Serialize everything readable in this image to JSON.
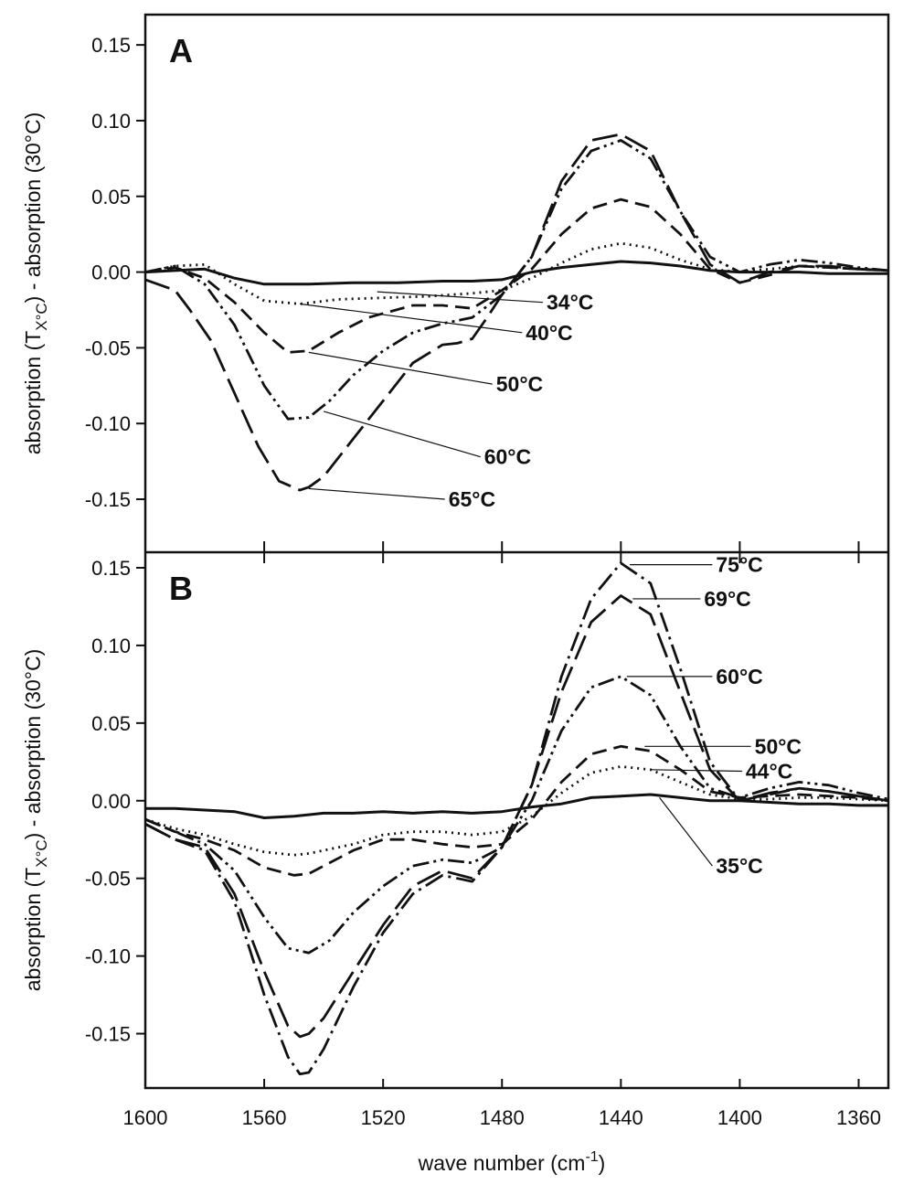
{
  "chart_data": [
    {
      "type": "line",
      "panel": "A",
      "xlabel_main": "wave number (cm",
      "xlabel_sup": "-1",
      "xlabel_end": ")",
      "ylabel_pre": "absorption (T",
      "ylabel_sub": "X°C",
      "ylabel_post": ") - absorption (30°C)",
      "xlim": [
        1600,
        1350
      ],
      "ylim": [
        -0.185,
        0.17
      ],
      "grid": false,
      "yticks": [
        "-0.15",
        "-0.10",
        "-0.05",
        "0.00",
        "0.05",
        "0.10",
        "0.15"
      ],
      "ytick_values": [
        -0.15,
        -0.1,
        -0.05,
        0.0,
        0.05,
        0.1,
        0.15
      ],
      "series": [
        {
          "name": "34°C",
          "dash": "solid",
          "label_at": [
            1522,
            -0.013
          ],
          "x": [
            1600,
            1590,
            1580,
            1570,
            1560,
            1545,
            1530,
            1515,
            1500,
            1490,
            1480,
            1470,
            1460,
            1450,
            1440,
            1430,
            1420,
            1410,
            1400,
            1390,
            1380,
            1370,
            1360,
            1350
          ],
          "y": [
            0.0,
            0.001,
            0.002,
            -0.004,
            -0.008,
            -0.008,
            -0.007,
            -0.007,
            -0.006,
            -0.006,
            -0.005,
            0.0,
            0.003,
            0.005,
            0.007,
            0.006,
            0.004,
            0.001,
            0.0,
            0.0,
            0.0,
            -0.001,
            -0.001,
            -0.001
          ]
        },
        {
          "name": "40°C",
          "dash": "dotted",
          "label_at": [
            1548,
            -0.021
          ],
          "x": [
            1600,
            1590,
            1580,
            1570,
            1560,
            1548,
            1535,
            1520,
            1505,
            1490,
            1480,
            1470,
            1460,
            1450,
            1440,
            1430,
            1420,
            1410,
            1400,
            1390,
            1380,
            1370,
            1360,
            1350
          ],
          "y": [
            0.0,
            0.004,
            0.005,
            -0.008,
            -0.019,
            -0.021,
            -0.018,
            -0.017,
            -0.016,
            -0.014,
            -0.012,
            -0.004,
            0.006,
            0.015,
            0.019,
            0.016,
            0.008,
            0.002,
            0.0,
            0.002,
            0.004,
            0.003,
            0.002,
            0.001
          ]
        },
        {
          "name": "50°C",
          "dash": "dashed",
          "label_at": [
            1545,
            -0.053
          ],
          "x": [
            1600,
            1590,
            1580,
            1570,
            1560,
            1552,
            1545,
            1535,
            1525,
            1510,
            1500,
            1490,
            1480,
            1470,
            1460,
            1450,
            1440,
            1430,
            1420,
            1410,
            1400,
            1390,
            1380,
            1370,
            1360,
            1350
          ],
          "y": [
            0.0,
            0.003,
            -0.004,
            -0.02,
            -0.04,
            -0.053,
            -0.052,
            -0.04,
            -0.03,
            -0.022,
            -0.022,
            -0.024,
            -0.012,
            0.002,
            0.025,
            0.042,
            0.048,
            0.043,
            0.025,
            0.002,
            -0.007,
            -0.002,
            0.004,
            0.003,
            0.002,
            0.001
          ]
        },
        {
          "name": "60°C",
          "dash": "dash-dot-dot",
          "label_at": [
            1540,
            -0.092
          ],
          "x": [
            1600,
            1590,
            1580,
            1570,
            1560,
            1552,
            1545,
            1538,
            1530,
            1520,
            1510,
            1500,
            1490,
            1480,
            1470,
            1460,
            1450,
            1440,
            1430,
            1420,
            1410,
            1400,
            1390,
            1380,
            1370,
            1360,
            1350
          ],
          "y": [
            0.0,
            0.004,
            -0.008,
            -0.035,
            -0.075,
            -0.097,
            -0.096,
            -0.085,
            -0.068,
            -0.052,
            -0.04,
            -0.034,
            -0.03,
            -0.015,
            0.01,
            0.055,
            0.08,
            0.087,
            0.075,
            0.04,
            0.01,
            0.0,
            0.005,
            0.008,
            0.006,
            0.003,
            0.001
          ]
        },
        {
          "name": "65°C",
          "dash": "long-dash",
          "label_at": [
            1545,
            -0.143
          ],
          "x": [
            1600,
            1590,
            1585,
            1578,
            1570,
            1562,
            1555,
            1548,
            1545,
            1540,
            1530,
            1520,
            1510,
            1500,
            1495,
            1490,
            1485,
            1480,
            1470,
            1460,
            1450,
            1440,
            1430,
            1420,
            1410,
            1400,
            1390,
            1380,
            1370,
            1360,
            1350
          ],
          "y": [
            -0.005,
            -0.012,
            -0.025,
            -0.045,
            -0.08,
            -0.115,
            -0.138,
            -0.144,
            -0.142,
            -0.135,
            -0.11,
            -0.085,
            -0.06,
            -0.048,
            -0.047,
            -0.044,
            -0.03,
            -0.015,
            0.01,
            0.06,
            0.087,
            0.091,
            0.08,
            0.04,
            0.005,
            -0.007,
            0.0,
            0.004,
            0.004,
            0.002,
            0.001
          ]
        }
      ],
      "labels": [
        {
          "text": "34°C",
          "to": [
            1522,
            -0.013
          ],
          "at": [
            1465,
            -0.02
          ]
        },
        {
          "text": "40°C",
          "to": [
            1548,
            -0.021
          ],
          "at": [
            1472,
            -0.04
          ]
        },
        {
          "text": "50°C",
          "to": [
            1545,
            -0.053
          ],
          "at": [
            1482,
            -0.074
          ]
        },
        {
          "text": "60°C",
          "to": [
            1540,
            -0.092
          ],
          "at": [
            1486,
            -0.122
          ]
        },
        {
          "text": "65°C",
          "to": [
            1545,
            -0.143
          ],
          "at": [
            1498,
            -0.15
          ]
        }
      ]
    },
    {
      "type": "line",
      "panel": "B",
      "xlim": [
        1600,
        1350
      ],
      "ylim": [
        -0.185,
        0.16
      ],
      "grid": false,
      "yticks": [
        "-0.15",
        "-0.10",
        "-0.05",
        "0.00",
        "0.05",
        "0.10",
        "0.15"
      ],
      "ytick_values": [
        -0.15,
        -0.1,
        -0.05,
        0.0,
        0.05,
        0.1,
        0.15
      ],
      "xticks": [
        "1600",
        "1560",
        "1520",
        "1480",
        "1440",
        "1400",
        "1360"
      ],
      "xtick_values": [
        1600,
        1560,
        1520,
        1480,
        1440,
        1400,
        1360
      ],
      "series": [
        {
          "name": "35°C",
          "dash": "solid",
          "label_at": [
            1427,
            0.002
          ],
          "x": [
            1600,
            1590,
            1580,
            1570,
            1560,
            1550,
            1540,
            1530,
            1520,
            1510,
            1500,
            1490,
            1480,
            1470,
            1460,
            1450,
            1440,
            1430,
            1420,
            1410,
            1400,
            1390,
            1380,
            1370,
            1360,
            1350
          ],
          "y": [
            -0.005,
            -0.005,
            -0.006,
            -0.007,
            -0.011,
            -0.01,
            -0.008,
            -0.008,
            -0.007,
            -0.008,
            -0.007,
            -0.008,
            -0.007,
            -0.004,
            -0.002,
            0.002,
            0.003,
            0.004,
            0.002,
            0.0,
            0.0,
            -0.001,
            -0.002,
            -0.002,
            -0.003,
            -0.003
          ]
        },
        {
          "name": "44°C",
          "dash": "dotted",
          "label_at": [
            1430,
            0.02
          ],
          "x": [
            1600,
            1590,
            1580,
            1570,
            1560,
            1550,
            1545,
            1540,
            1530,
            1520,
            1510,
            1500,
            1490,
            1480,
            1470,
            1460,
            1450,
            1440,
            1430,
            1420,
            1410,
            1400,
            1390,
            1380,
            1370,
            1360,
            1350
          ],
          "y": [
            -0.012,
            -0.018,
            -0.022,
            -0.028,
            -0.033,
            -0.035,
            -0.034,
            -0.032,
            -0.028,
            -0.022,
            -0.02,
            -0.02,
            -0.022,
            -0.02,
            -0.01,
            0.005,
            0.018,
            0.022,
            0.02,
            0.012,
            0.004,
            0.001,
            0.001,
            0.002,
            0.002,
            0.001,
            0.0
          ]
        },
        {
          "name": "50°C",
          "dash": "dashed",
          "label_at": [
            1432,
            0.035
          ],
          "x": [
            1600,
            1590,
            1580,
            1570,
            1560,
            1550,
            1545,
            1540,
            1530,
            1520,
            1510,
            1500,
            1490,
            1480,
            1470,
            1460,
            1450,
            1440,
            1430,
            1420,
            1410,
            1400,
            1390,
            1380,
            1370,
            1360,
            1350
          ],
          "y": [
            -0.012,
            -0.02,
            -0.025,
            -0.032,
            -0.043,
            -0.048,
            -0.047,
            -0.042,
            -0.032,
            -0.025,
            -0.025,
            -0.028,
            -0.03,
            -0.028,
            -0.012,
            0.012,
            0.03,
            0.035,
            0.032,
            0.02,
            0.006,
            0.002,
            0.003,
            0.004,
            0.003,
            0.002,
            0.0
          ]
        },
        {
          "name": "60°C",
          "dash": "dash-dot-dot",
          "label_at": [
            1438,
            0.08
          ],
          "x": [
            1600,
            1590,
            1580,
            1570,
            1560,
            1552,
            1545,
            1538,
            1530,
            1520,
            1510,
            1500,
            1490,
            1480,
            1470,
            1460,
            1450,
            1440,
            1430,
            1420,
            1410,
            1400,
            1390,
            1380,
            1370,
            1360,
            1350
          ],
          "y": [
            -0.012,
            -0.02,
            -0.028,
            -0.045,
            -0.075,
            -0.095,
            -0.098,
            -0.09,
            -0.072,
            -0.055,
            -0.042,
            -0.038,
            -0.04,
            -0.03,
            0.0,
            0.045,
            0.073,
            0.08,
            0.068,
            0.035,
            0.008,
            0.002,
            0.008,
            0.012,
            0.01,
            0.005,
            0.001
          ]
        },
        {
          "name": "69°C",
          "dash": "long-dash",
          "label_at": [
            1436,
            0.13
          ],
          "x": [
            1600,
            1590,
            1580,
            1570,
            1560,
            1552,
            1548,
            1545,
            1540,
            1530,
            1520,
            1510,
            1500,
            1490,
            1480,
            1470,
            1460,
            1450,
            1440,
            1430,
            1420,
            1410,
            1400,
            1390,
            1380,
            1370,
            1360,
            1350
          ],
          "y": [
            -0.015,
            -0.025,
            -0.03,
            -0.06,
            -0.11,
            -0.145,
            -0.152,
            -0.15,
            -0.14,
            -0.11,
            -0.08,
            -0.055,
            -0.045,
            -0.05,
            -0.03,
            0.01,
            0.07,
            0.115,
            0.132,
            0.12,
            0.07,
            0.02,
            0.0,
            0.005,
            0.008,
            0.006,
            0.003,
            0.0
          ]
        },
        {
          "name": "75°C",
          "dash": "dash-dot",
          "label_at": [
            1437,
            0.152
          ],
          "x": [
            1600,
            1590,
            1580,
            1570,
            1560,
            1552,
            1548,
            1545,
            1540,
            1530,
            1520,
            1510,
            1500,
            1490,
            1480,
            1470,
            1460,
            1450,
            1440,
            1430,
            1420,
            1410,
            1400,
            1390,
            1380,
            1370,
            1360,
            1350
          ],
          "y": [
            -0.015,
            -0.025,
            -0.032,
            -0.065,
            -0.125,
            -0.165,
            -0.176,
            -0.175,
            -0.16,
            -0.12,
            -0.085,
            -0.06,
            -0.048,
            -0.052,
            -0.03,
            0.01,
            0.08,
            0.13,
            0.153,
            0.14,
            0.085,
            0.025,
            0.0,
            0.004,
            0.008,
            0.006,
            0.003,
            0.0
          ]
        }
      ],
      "labels": [
        {
          "text": "75°C",
          "to": [
            1437,
            0.152
          ],
          "at": [
            1408,
            0.152
          ]
        },
        {
          "text": "69°C",
          "to": [
            1436,
            0.13
          ],
          "at": [
            1412,
            0.13
          ]
        },
        {
          "text": "60°C",
          "to": [
            1438,
            0.08
          ],
          "at": [
            1408,
            0.08
          ]
        },
        {
          "text": "50°C",
          "to": [
            1432,
            0.035
          ],
          "at": [
            1395,
            0.035
          ]
        },
        {
          "text": "44°C",
          "to": [
            1430,
            0.02
          ],
          "at": [
            1398,
            0.019
          ]
        },
        {
          "text": "35°C",
          "to": [
            1427,
            0.002
          ],
          "at": [
            1408,
            -0.042
          ]
        }
      ]
    }
  ]
}
